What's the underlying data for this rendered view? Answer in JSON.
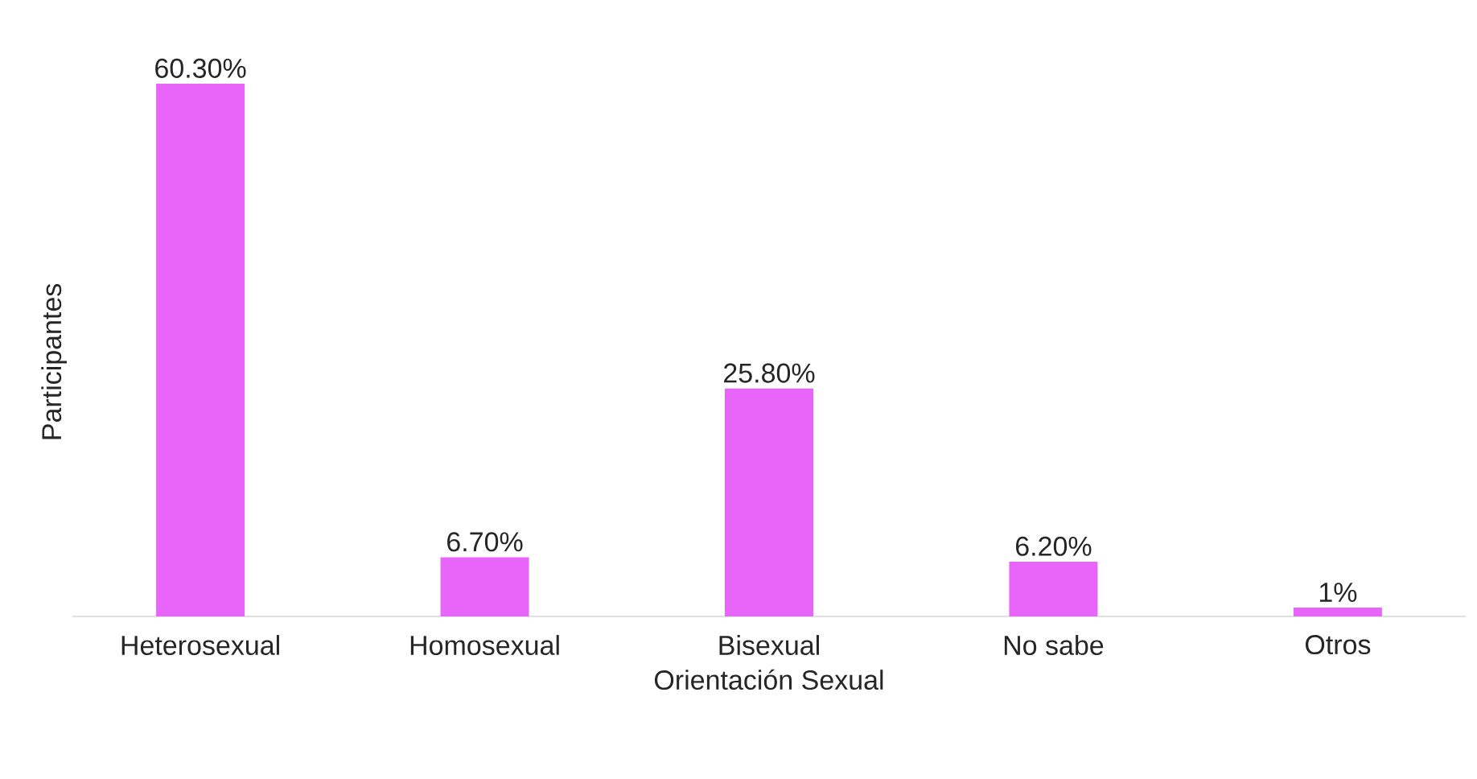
{
  "chart_data": {
    "type": "bar",
    "xlabel": "Orientación Sexual",
    "ylabel": "Participantes",
    "categories": [
      "Heterosexual",
      "Homosexual",
      "Bisexual",
      "No sabe",
      "Otros"
    ],
    "values": [
      60.3,
      6.7,
      25.8,
      6.2,
      1
    ],
    "value_labels": [
      "60.30%",
      "6.70%",
      "25.80%",
      "6.20%",
      "1%"
    ],
    "color": "#e766f9"
  }
}
